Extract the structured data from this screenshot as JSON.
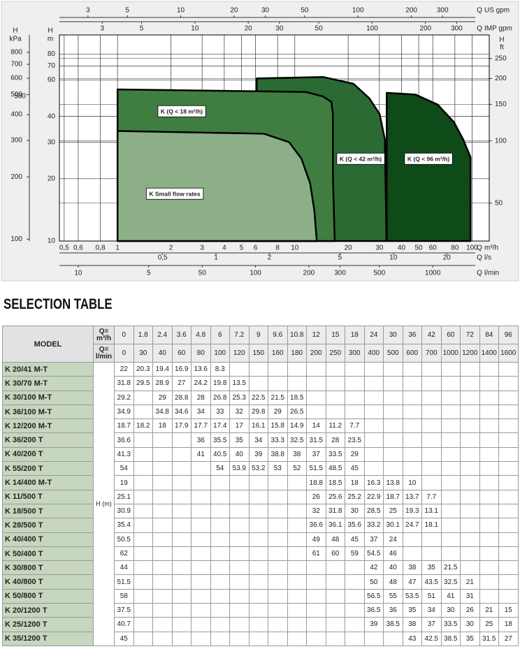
{
  "chart_data": {
    "type": "area",
    "log_x": true,
    "log_y": true,
    "grid": true,
    "xlabel": {
      "symbol": "Q",
      "unit": "m³/h"
    },
    "xlim": [
      0.47,
      125
    ],
    "xticks": [
      {
        "value": 0.5,
        "label": "0,5"
      },
      {
        "value": 0.6,
        "label": "0,6"
      },
      {
        "value": 0.8,
        "label": "0,8"
      },
      1,
      2,
      3,
      4,
      5,
      6,
      8,
      10,
      20,
      30,
      40,
      50,
      60,
      80,
      100
    ],
    "ylabel": {
      "symbol": "H",
      "unit": "m"
    },
    "ylim": [
      10,
      99
    ],
    "yticks": [
      10,
      20,
      30,
      40,
      60,
      70,
      80
    ],
    "secondary_axes": [
      {
        "position": "top",
        "label": {
          "symbol": "Q",
          "unit": "US gpm"
        },
        "lim": [
          2.07,
          550
        ],
        "ticks": [
          3,
          5,
          10,
          20,
          30,
          50,
          100,
          200,
          300
        ]
      },
      {
        "position": "top",
        "label": {
          "symbol": "Q",
          "unit": "IMP gpm"
        },
        "lim": [
          1.72,
          458
        ],
        "ticks": [
          3,
          5,
          10,
          20,
          30,
          50,
          100,
          200,
          300
        ]
      },
      {
        "position": "bottom",
        "label": {
          "symbol": "Q",
          "unit": "l/s"
        },
        "lim": [
          0.131,
          34.7
        ],
        "ticks": [
          {
            "value": 0.5,
            "label": "0,5"
          },
          1,
          2,
          5,
          10,
          20
        ]
      },
      {
        "position": "bottom",
        "label": {
          "symbol": "Q",
          "unit": "l/min"
        },
        "lim": [
          7.83,
          2083
        ],
        "ticks": [
          10,
          {
            "value": 25,
            "label": "5"
          },
          50,
          100,
          200,
          300,
          500,
          1000
        ]
      },
      {
        "position": "left",
        "label": {
          "symbol": "H",
          "unit": "kPa"
        },
        "lim": [
          98,
          971
        ],
        "ticks": [
          100,
          200,
          300,
          400,
          500,
          600,
          700,
          800
        ]
      },
      {
        "position": "right",
        "label": {
          "symbol": "H",
          "unit": "ft"
        },
        "lim": [
          32.8,
          325
        ],
        "ticks": [
          50,
          100,
          150,
          200,
          250
        ]
      }
    ],
    "annotations": [
      "580"
    ],
    "series": [
      {
        "name": "K (Q < 96 m³/h)",
        "color": "#0f4a19",
        "x": [
          33,
          33,
          48,
          64,
          79,
          89,
          98,
          98
        ],
        "values": [
          10,
          52,
          51,
          45.6,
          37.5,
          31,
          25.4,
          10
        ]
      },
      {
        "name": "K (Q < 42 m³/h)",
        "color": "#2c6a33",
        "x": [
          6.1,
          6.1,
          14.4,
          21.4,
          26.3,
          30.1,
          32.2,
          32.9
        ],
        "values": [
          10,
          61,
          62,
          57.5,
          49,
          41,
          31,
          10
        ]
      },
      {
        "name": "K (Q < 18 m³/h)",
        "color": "#3f7e40",
        "x": [
          1,
          1,
          11.5,
          14.4,
          16.1,
          16.4,
          16.4,
          16.8
        ],
        "values": [
          10,
          54,
          52.5,
          50,
          47,
          41,
          21,
          10
        ]
      },
      {
        "name": "K Small flow rates",
        "color": "#8caf87",
        "x": [
          1,
          1,
          6.7,
          9.3,
          10.9,
          12.2,
          12.9,
          13.3
        ],
        "values": [
          10,
          34,
          33,
          30,
          25,
          19,
          14,
          10
        ]
      }
    ]
  },
  "heading": "SELECTION TABLE",
  "table": {
    "model_header": "MODEL",
    "flow_headers": [
      "Q= m³/h",
      "Q= l/min"
    ],
    "head_unit": "H (m)",
    "flow_m3h": [
      0,
      1.8,
      2.4,
      3.6,
      4.8,
      6,
      7.2,
      9,
      9.6,
      10.8,
      12,
      15,
      18,
      24,
      30,
      36,
      42,
      60,
      72,
      84,
      96
    ],
    "flow_lmin": [
      0,
      30,
      40,
      60,
      80,
      100,
      120,
      150,
      160,
      180,
      200,
      250,
      300,
      400,
      500,
      600,
      700,
      1000,
      1200,
      1400,
      1600
    ],
    "rows": [
      {
        "model": "K 20/41 M-T",
        "values": [
          22,
          20.3,
          19.4,
          16.9,
          13.6,
          8.3,
          null,
          null,
          null,
          null,
          null,
          null,
          null,
          null,
          null,
          null,
          null,
          null,
          null,
          null,
          null
        ]
      },
      {
        "model": "K 30/70 M-T",
        "values": [
          31.8,
          29.5,
          28.9,
          27,
          24.2,
          19.8,
          13.5,
          null,
          null,
          null,
          null,
          null,
          null,
          null,
          null,
          null,
          null,
          null,
          null,
          null,
          null
        ]
      },
      {
        "model": "K 30/100 M-T",
        "values": [
          29.2,
          null,
          29,
          28.8,
          28,
          26.8,
          25.3,
          22.5,
          21.5,
          18.5,
          null,
          null,
          null,
          null,
          null,
          null,
          null,
          null,
          null,
          null,
          null
        ]
      },
      {
        "model": "K 36/100 M-T",
        "values": [
          34.9,
          null,
          34.8,
          34.6,
          34,
          33,
          32,
          29.8,
          29,
          26.5,
          null,
          null,
          null,
          null,
          null,
          null,
          null,
          null,
          null,
          null,
          null
        ]
      },
      {
        "model": "K 12/200 M-T",
        "values": [
          18.7,
          18.2,
          18,
          17.9,
          17.7,
          17.4,
          17,
          16.1,
          15.8,
          14.9,
          14,
          11.2,
          7.7,
          null,
          null,
          null,
          null,
          null,
          null,
          null,
          null
        ]
      },
      {
        "model": "K 36/200 T",
        "values": [
          36.6,
          null,
          null,
          null,
          36,
          35.5,
          35,
          34,
          33.3,
          32.5,
          31.5,
          28,
          23.5,
          null,
          null,
          null,
          null,
          null,
          null,
          null,
          null
        ]
      },
      {
        "model": "K 40/200 T",
        "values": [
          41.3,
          null,
          null,
          null,
          41,
          40.5,
          40,
          39,
          38.8,
          38,
          37,
          33.5,
          29,
          null,
          null,
          null,
          null,
          null,
          null,
          null,
          null
        ]
      },
      {
        "model": "K 55/200 T",
        "values": [
          54,
          null,
          null,
          null,
          null,
          54,
          53.9,
          53.2,
          53,
          52,
          51.5,
          48.5,
          45,
          null,
          null,
          null,
          null,
          null,
          null,
          null,
          null
        ]
      },
      {
        "model": "K 14/400 M-T",
        "values": [
          19,
          null,
          null,
          null,
          null,
          null,
          null,
          null,
          null,
          null,
          18.8,
          18.5,
          18,
          16.3,
          13.8,
          10,
          null,
          null,
          null,
          null,
          null
        ]
      },
      {
        "model": "K 11/500 T",
        "values": [
          25.1,
          null,
          null,
          null,
          null,
          null,
          null,
          null,
          null,
          null,
          26,
          25.6,
          25.2,
          22.9,
          18.7,
          13.7,
          7.7,
          null,
          null,
          null,
          null
        ]
      },
      {
        "model": "K 18/500 T",
        "values": [
          30.9,
          null,
          null,
          null,
          null,
          null,
          null,
          null,
          null,
          null,
          32,
          31.8,
          30,
          28.5,
          25,
          19.3,
          13.1,
          null,
          null,
          null,
          null
        ]
      },
      {
        "model": "K 28/500 T",
        "values": [
          35.4,
          null,
          null,
          null,
          null,
          null,
          null,
          null,
          null,
          null,
          36.6,
          36.1,
          35.6,
          33.2,
          30.1,
          24.7,
          18.1,
          null,
          null,
          null,
          null
        ]
      },
      {
        "model": "K 40/400 T",
        "values": [
          50.5,
          null,
          null,
          null,
          null,
          null,
          null,
          null,
          null,
          null,
          49,
          48,
          45,
          37,
          24,
          null,
          null,
          null,
          null,
          null,
          null
        ]
      },
      {
        "model": "K 50/400 T",
        "values": [
          62,
          null,
          null,
          null,
          null,
          null,
          null,
          null,
          null,
          null,
          61,
          60,
          59,
          54.5,
          46,
          null,
          null,
          null,
          null,
          null,
          null
        ]
      },
      {
        "model": "K 30/800 T",
        "values": [
          44,
          null,
          null,
          null,
          null,
          null,
          null,
          null,
          null,
          null,
          null,
          null,
          null,
          42,
          40,
          38,
          35,
          21.5,
          null,
          null,
          null
        ]
      },
      {
        "model": "K 40/800 T",
        "values": [
          51.5,
          null,
          null,
          null,
          null,
          null,
          null,
          null,
          null,
          null,
          null,
          null,
          null,
          50,
          48,
          47,
          43.5,
          32.5,
          21,
          null,
          null
        ]
      },
      {
        "model": "K 50/800 T",
        "values": [
          58,
          null,
          null,
          null,
          null,
          null,
          null,
          null,
          null,
          null,
          null,
          null,
          null,
          56.5,
          55,
          53.5,
          51,
          41,
          31,
          null,
          null
        ]
      },
      {
        "model": "K 20/1200 T",
        "values": [
          37.5,
          null,
          null,
          null,
          null,
          null,
          null,
          null,
          null,
          null,
          null,
          null,
          null,
          36.5,
          36,
          35,
          34,
          30,
          26,
          21,
          15
        ]
      },
      {
        "model": "K 25/1200 T",
        "values": [
          40.7,
          null,
          null,
          null,
          null,
          null,
          null,
          null,
          null,
          null,
          null,
          null,
          null,
          39,
          38.5,
          38,
          37,
          33.5,
          30,
          25,
          18
        ]
      },
      {
        "model": "K 35/1200 T",
        "values": [
          45,
          null,
          null,
          null,
          null,
          null,
          null,
          null,
          null,
          null,
          null,
          null,
          null,
          null,
          null,
          43,
          42.5,
          38.5,
          35,
          31.5,
          27
        ]
      }
    ]
  }
}
